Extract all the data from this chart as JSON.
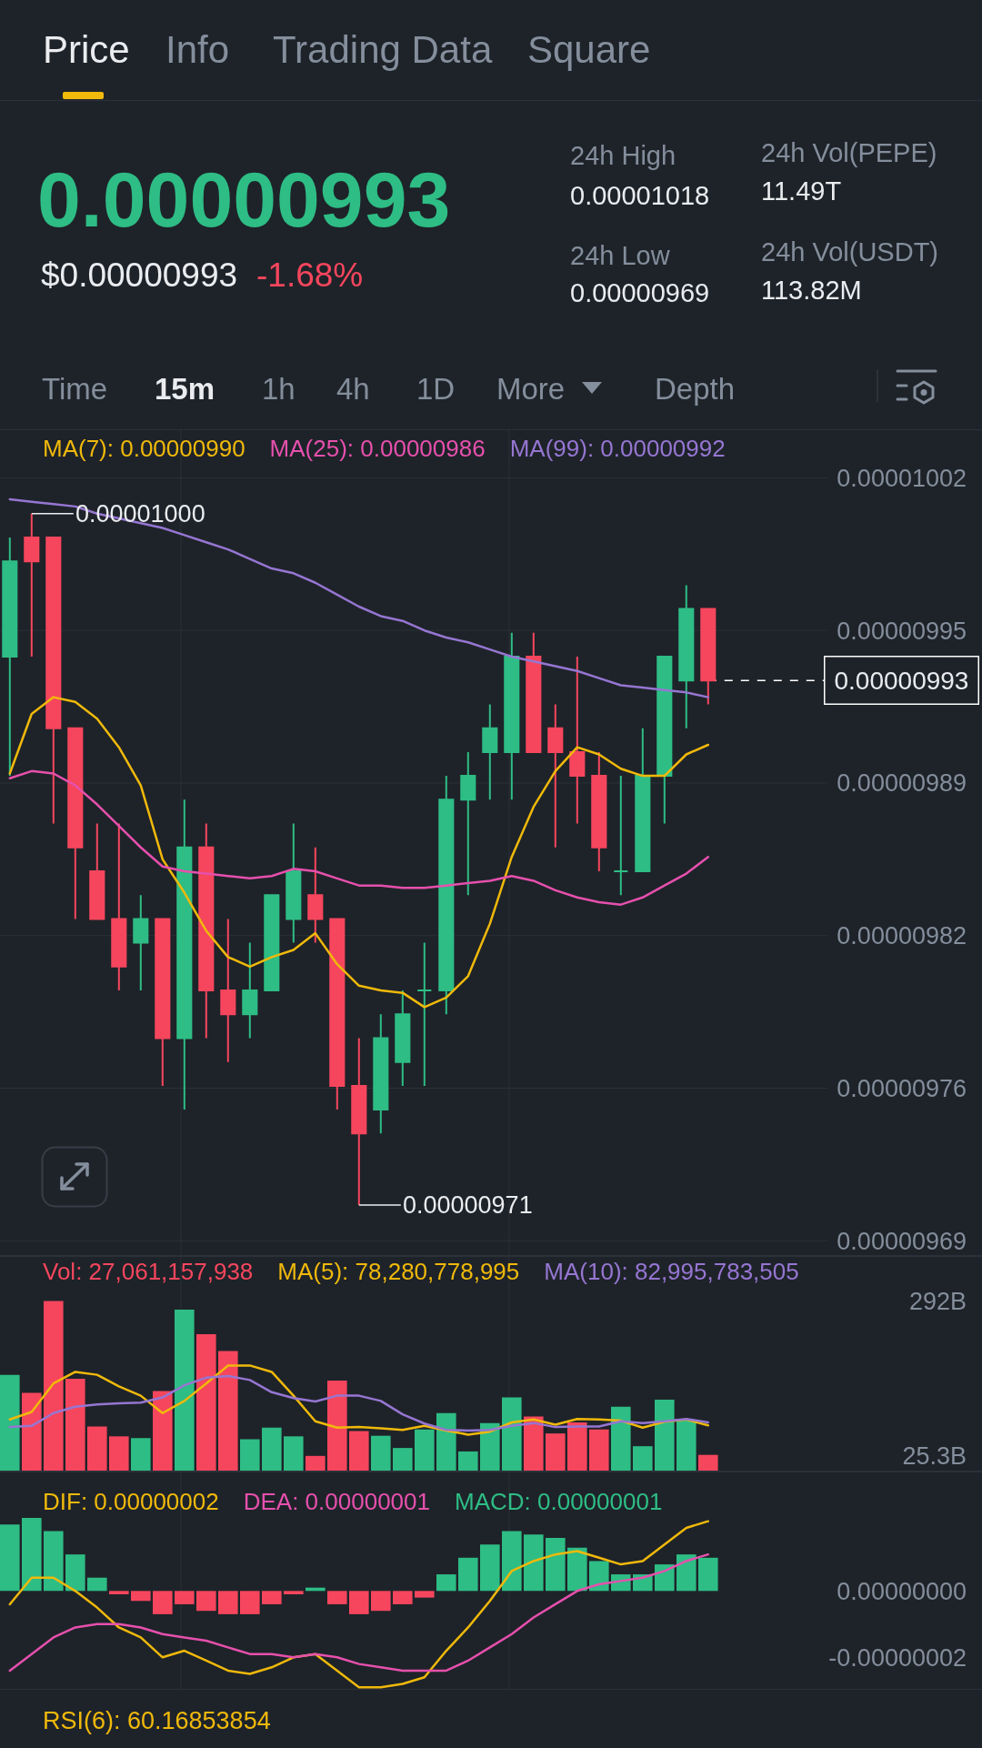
{
  "chart_data": [
    {
      "type": "other",
      "annotations": [
        "Price",
        "Info",
        "Trading Data",
        "Square",
        "0.00000993",
        "$0.00000993",
        "-1.68%",
        "24h High",
        "0.00001018",
        "24h Low",
        "0.00000969",
        "24h Vol(PEPE)",
        "11.49T",
        "24h Vol(USDT)",
        "113.82M",
        "Time",
        "15m",
        "1h",
        "4h",
        "1D",
        "More",
        "Depth"
      ]
    },
    {
      "type": "candlestick",
      "categories": [
        null,
        null,
        null,
        null,
        null,
        null,
        null,
        null,
        null,
        null,
        null,
        null,
        null,
        null,
        null,
        null,
        null,
        null,
        null,
        null,
        null,
        null,
        null,
        null,
        null,
        null,
        null,
        null,
        null,
        null,
        null,
        null,
        null
      ],
      "ohlc": [
        [
          9.94e-06,
          9.99e-06,
          9.89e-06,
          9.98e-06
        ],
        [
          9.99e-06,
          1e-05,
          9.94e-06,
          9.98e-06
        ],
        [
          9.99e-06,
          9.99e-06,
          9.87e-06,
          9.91e-06
        ],
        [
          9.91e-06,
          9.91e-06,
          9.83e-06,
          9.86e-06
        ],
        [
          9.85e-06,
          9.87e-06,
          9.83e-06,
          9.83e-06
        ],
        [
          9.83e-06,
          9.87e-06,
          9.8e-06,
          9.81e-06
        ],
        [
          9.82e-06,
          9.84e-06,
          9.8e-06,
          9.83e-06
        ],
        [
          9.83e-06,
          9.83e-06,
          9.76e-06,
          9.78e-06
        ],
        [
          9.78e-06,
          9.88e-06,
          9.75e-06,
          9.86e-06
        ],
        [
          9.86e-06,
          9.87e-06,
          9.78e-06,
          9.8e-06
        ],
        [
          9.8e-06,
          9.83e-06,
          9.77e-06,
          9.79e-06
        ],
        [
          9.79e-06,
          9.82e-06,
          9.78e-06,
          9.8e-06
        ],
        [
          9.8e-06,
          9.84e-06,
          9.8e-06,
          9.84e-06
        ],
        [
          9.83e-06,
          9.87e-06,
          9.82e-06,
          9.85e-06
        ],
        [
          9.84e-06,
          9.86e-06,
          9.82e-06,
          9.83e-06
        ],
        [
          9.83e-06,
          9.83e-06,
          9.75e-06,
          9.76e-06
        ],
        [
          9.76e-06,
          9.78e-06,
          9.71e-06,
          9.74e-06
        ],
        [
          9.75e-06,
          9.79e-06,
          9.74e-06,
          9.78e-06
        ],
        [
          9.77e-06,
          9.8e-06,
          9.76e-06,
          9.79e-06
        ],
        [
          9.8e-06,
          9.82e-06,
          9.76e-06,
          9.8e-06
        ],
        [
          9.8e-06,
          9.89e-06,
          9.79e-06,
          9.88e-06
        ],
        [
          9.88e-06,
          9.9e-06,
          9.84e-06,
          9.89e-06
        ],
        [
          9.9e-06,
          9.92e-06,
          9.88e-06,
          9.91e-06
        ],
        [
          9.9e-06,
          9.95e-06,
          9.88e-06,
          9.94e-06
        ],
        [
          9.94e-06,
          9.95e-06,
          9.9e-06,
          9.9e-06
        ],
        [
          9.91e-06,
          9.92e-06,
          9.86e-06,
          9.9e-06
        ],
        [
          9.9e-06,
          9.94e-06,
          9.87e-06,
          9.89e-06
        ],
        [
          9.89e-06,
          9.9e-06,
          9.85e-06,
          9.86e-06
        ],
        [
          9.85e-06,
          9.89e-06,
          9.84e-06,
          9.85e-06
        ],
        [
          9.85e-06,
          9.91e-06,
          9.85e-06,
          9.89e-06
        ],
        [
          9.89e-06,
          9.94e-06,
          9.87e-06,
          9.94e-06
        ],
        [
          9.93e-06,
          9.97e-06,
          9.91e-06,
          9.96e-06
        ],
        [
          9.96e-06,
          9.96e-06,
          9.92e-06,
          9.93e-06
        ]
      ],
      "colors": [
        "#2ebd85",
        "#f6465d",
        "#f6465d",
        "#f6465d",
        "#f6465d",
        "#f6465d",
        "#2ebd85",
        "#f6465d",
        "#2ebd85",
        "#f6465d",
        "#f6465d",
        "#2ebd85",
        "#2ebd85",
        "#2ebd85",
        "#f6465d",
        "#f6465d",
        "#f6465d",
        "#2ebd85",
        "#2ebd85",
        "#2ebd85",
        "#2ebd85",
        "#2ebd85",
        "#2ebd85",
        "#2ebd85",
        "#f6465d",
        "#f6465d",
        "#f6465d",
        "#f6465d",
        "#2ebd85",
        "#2ebd85",
        "#2ebd85",
        "#2ebd85",
        "#f6465d"
      ],
      "series": [
        {
          "type": "line",
          "name": "MA(7): 0.00000990",
          "color": "#f0b90b",
          "values": [
            9.891e-06,
            9.916e-06,
            9.923e-06,
            9.921e-06,
            9.914e-06,
            9.902e-06,
            9.886e-06,
            9.855e-06,
            9.841e-06,
            9.825e-06,
            9.814e-06,
            9.81e-06,
            9.814e-06,
            9.817e-06,
            9.824e-06,
            9.811e-06,
            9.802e-06,
            9.8e-06,
            9.799e-06,
            9.793e-06,
            9.797e-06,
            9.806e-06,
            9.828e-06,
            9.856e-06,
            9.877e-06,
            9.892e-06,
            9.902e-06,
            9.899e-06,
            9.893e-06,
            9.89e-06,
            9.89e-06,
            9.899e-06,
            9.903e-06
          ]
        },
        {
          "type": "line",
          "name": "MA(25): 0.00000986",
          "color": "#e650ad",
          "values": [
            9.889e-06,
            9.892e-06,
            9.891e-06,
            9.886e-06,
            9.878e-06,
            9.869e-06,
            9.86e-06,
            9.852e-06,
            9.85e-06,
            9.849e-06,
            9.848e-06,
            9.847e-06,
            9.848e-06,
            9.851e-06,
            9.85e-06,
            9.847e-06,
            9.844e-06,
            9.844e-06,
            9.843e-06,
            9.843e-06,
            9.844e-06,
            9.845e-06,
            9.846e-06,
            9.848e-06,
            9.846e-06,
            9.842e-06,
            9.839e-06,
            9.837e-06,
            9.836e-06,
            9.839e-06,
            9.844e-06,
            9.849e-06,
            9.856e-06
          ]
        },
        {
          "type": "line",
          "name": "MA(99): 0.00000992",
          "color": "#9676d2",
          "values": [
            1.0006e-05,
            1.0005e-05,
            1.0004e-05,
            1.0003e-05,
            1e-05,
            9.998e-06,
            9.996e-06,
            9.994e-06,
            9.991e-06,
            9.988e-06,
            9.985e-06,
            9.981e-06,
            9.977e-06,
            9.975e-06,
            9.971e-06,
            9.966e-06,
            9.961e-06,
            9.957e-06,
            9.955e-06,
            9.951e-06,
            9.948e-06,
            9.946e-06,
            9.943e-06,
            9.94e-06,
            9.938e-06,
            9.936e-06,
            9.934e-06,
            9.931e-06,
            9.928e-06,
            9.927e-06,
            9.926e-06,
            9.925e-06,
            9.923e-06
          ]
        }
      ],
      "ylim": [
        9.689e-06,
        1.0035e-05
      ],
      "yticks": [
        {
          "value": 1.0015e-05,
          "label": "0.00001002"
        },
        {
          "value": 9.951e-06,
          "label": "0.00000995"
        },
        {
          "value": 9.887e-06,
          "label": "0.00000989"
        },
        {
          "value": 9.823e-06,
          "label": "0.00000982"
        },
        {
          "value": 9.759e-06,
          "label": "0.00000976"
        },
        {
          "value": 9.695e-06,
          "label": "0.00000969"
        }
      ],
      "grid": true,
      "legend": "top",
      "tick_labels": "y",
      "annotations": [
        "0.00001000",
        "0.00000971"
      ],
      "ref_lines": [
        {
          "axis": "y",
          "value": 9.93e-06,
          "label": "0.00000993",
          "line_style": "dashed",
          "color": "#ffffff"
        }
      ]
    },
    {
      "type": "bar",
      "categories": [
        null,
        null,
        null,
        null,
        null,
        null,
        null,
        null,
        null,
        null,
        null,
        null,
        null,
        null,
        null,
        null,
        null,
        null,
        null,
        null,
        null,
        null,
        null,
        null,
        null,
        null,
        null,
        null,
        null,
        null,
        null,
        null,
        null
      ],
      "series": [
        {
          "name": "Vol: 27,061,157,938",
          "colors": [
            "#2ebd85",
            "#f6465d",
            "#f6465d",
            "#f6465d",
            "#f6465d",
            "#f6465d",
            "#2ebd85",
            "#f6465d",
            "#2ebd85",
            "#f6465d",
            "#f6465d",
            "#2ebd85",
            "#2ebd85",
            "#2ebd85",
            "#f6465d",
            "#f6465d",
            "#f6465d",
            "#2ebd85",
            "#2ebd85",
            "#2ebd85",
            "#2ebd85",
            "#2ebd85",
            "#2ebd85",
            "#2ebd85",
            "#f6465d",
            "#f6465d",
            "#f6465d",
            "#f6465d",
            "#2ebd85",
            "#2ebd85",
            "#2ebd85",
            "#2ebd85",
            "#f6465d"
          ],
          "values": [
            165000000000,
            134000000000,
            292000000000,
            158000000000,
            76000000000,
            59000000000,
            56000000000,
            137000000000,
            277000000000,
            235000000000,
            206000000000,
            54000000000,
            74000000000,
            59000000000,
            25300000000,
            155000000000,
            68000000000,
            60000000000,
            39000000000,
            71000000000,
            99000000000,
            33000000000,
            82000000000,
            126000000000,
            93000000000,
            64000000000,
            83000000000,
            71000000000,
            110000000000,
            42000000000,
            122000000000,
            86000000000,
            27100000000
          ]
        },
        {
          "type": "line",
          "name": "MA(5): 78,280,778,995",
          "color": "#f0b90b",
          "values": [
            88000000000,
            101000000000,
            150000000000,
            170000000000,
            165000000000,
            145000000000,
            129000000000,
            99000000000,
            120000000000,
            150000000000,
            181000000000,
            181000000000,
            170000000000,
            129000000000,
            85000000000,
            74000000000,
            75000000000,
            73000000000,
            70000000000,
            77000000000,
            69000000000,
            62000000000,
            67000000000,
            83000000000,
            88000000000,
            79000000000,
            89000000000,
            88000000000,
            86000000000,
            74000000000,
            84000000000,
            88000000000,
            78000000000
          ]
        },
        {
          "type": "line",
          "name": "MA(10): 82,995,783,505",
          "color": "#9676d2",
          "values": [
            75000000000,
            77000000000,
            99000000000,
            110000000000,
            114000000000,
            116000000000,
            117000000000,
            126000000000,
            147000000000,
            160000000000,
            163000000000,
            156000000000,
            135000000000,
            125000000000,
            119000000000,
            129000000000,
            129000000000,
            120000000000,
            97000000000,
            81000000000,
            70000000000,
            69000000000,
            70000000000,
            77000000000,
            82000000000,
            75000000000,
            76000000000,
            76000000000,
            85000000000,
            82000000000,
            85000000000,
            89000000000,
            83000000000
          ]
        }
      ],
      "ylim": [
        0,
        368000000000
      ],
      "yticks": [
        {
          "value": 292000000000,
          "label": "292B"
        },
        {
          "value": 25300000000,
          "label": "25.3B"
        }
      ],
      "grid": "x",
      "legend": "top",
      "tick_labels": "y"
    },
    {
      "type": "bar",
      "categories": [
        null,
        null,
        null,
        null,
        null,
        null,
        null,
        null,
        null,
        null,
        null,
        null,
        null,
        null,
        null,
        null,
        null,
        null,
        null,
        null,
        null,
        null,
        null,
        null,
        null,
        null,
        null,
        null,
        null,
        null,
        null,
        null,
        null
      ],
      "series": [
        {
          "type": "line",
          "name": "DIF: 0.00000002",
          "color": "#f0b90b",
          "values": [
            -4e-09,
            4e-09,
            4e-09,
            0,
            -5e-09,
            -1.1e-08,
            -1.4e-08,
            -2e-08,
            -1.8e-08,
            -2.1e-08,
            -2.4e-08,
            -2.5e-08,
            -2.3e-08,
            -2e-08,
            -1.9e-08,
            -2.4e-08,
            -2.9e-08,
            -2.9e-08,
            -2.8e-08,
            -2.6e-08,
            -1.8e-08,
            -1.1e-08,
            -3e-09,
            6e-09,
            9e-09,
            1.1e-08,
            1.2e-08,
            1e-08,
            8e-09,
            9e-09,
            1.4e-08,
            1.9e-08,
            2.1e-08
          ]
        },
        {
          "type": "line",
          "name": "DEA: 0.00000001",
          "color": "#e650ad",
          "values": [
            -2.4e-08,
            -1.9e-08,
            -1.4e-08,
            -1.1e-08,
            -1e-08,
            -1e-08,
            -1.1e-08,
            -1.3e-08,
            -1.4e-08,
            -1.5e-08,
            -1.7e-08,
            -1.9e-08,
            -1.9e-08,
            -2e-08,
            -1.9e-08,
            -2e-08,
            -2.2e-08,
            -2.3e-08,
            -2.4e-08,
            -2.4e-08,
            -2.4e-08,
            -2.1e-08,
            -1.7e-08,
            -1.3e-08,
            -8e-09,
            -4e-09,
            0,
            2e-09,
            3e-09,
            4e-09,
            6e-09,
            9e-09,
            1.1e-08
          ]
        },
        {
          "type": "bar",
          "name": "MACD: 0.00000001",
          "colors": [
            "#2ebd85",
            "#2ebd85",
            "#2ebd85",
            "#2ebd85",
            "#2ebd85",
            "#f6465d",
            "#f6465d",
            "#f6465d",
            "#f6465d",
            "#f6465d",
            "#f6465d",
            "#f6465d",
            "#f6465d",
            "#f6465d",
            "#2ebd85",
            "#f6465d",
            "#f6465d",
            "#f6465d",
            "#f6465d",
            "#f6465d",
            "#2ebd85",
            "#2ebd85",
            "#2ebd85",
            "#2ebd85",
            "#2ebd85",
            "#2ebd85",
            "#2ebd85",
            "#2ebd85",
            "#2ebd85",
            "#2ebd85",
            "#2ebd85",
            "#2ebd85",
            "#2ebd85"
          ],
          "values": [
            2e-08,
            2.2e-08,
            1.8e-08,
            1.1e-08,
            4e-09,
            -1e-09,
            -3e-09,
            -7e-09,
            -4e-09,
            -6e-09,
            -7e-09,
            -7e-09,
            -4e-09,
            -1e-09,
            1e-09,
            -4e-09,
            -7e-09,
            -6e-09,
            -4e-09,
            -2e-09,
            5e-09,
            1e-08,
            1.4e-08,
            1.8e-08,
            1.7e-08,
            1.6e-08,
            1.3e-08,
            9e-09,
            5e-09,
            5e-09,
            8e-09,
            1.1e-08,
            1e-08
          ]
        }
      ],
      "ylim": [
        -2.95e-08,
        3.57e-08
      ],
      "yticks": [
        {
          "value": 0,
          "label": "0.00000000"
        },
        {
          "value": -2e-08,
          "label": "-0.00000002"
        }
      ],
      "grid": "x",
      "legend": "top",
      "tick_labels": "y"
    },
    {
      "type": "other",
      "title": "RSI(6): 60.16853854"
    }
  ]
}
